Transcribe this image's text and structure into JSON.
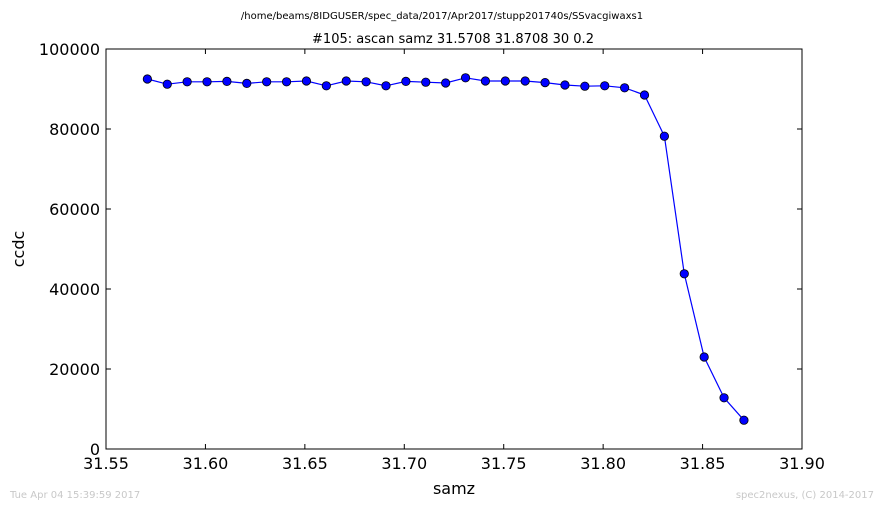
{
  "chart_data": {
    "type": "line",
    "suptitle": "/home/beams/8IDGUSER/spec_data/2017/Apr2017/stupp201740s/SSvacgiwaxs1",
    "title": "#105: ascan  samz 31.5708 31.8708  30 0.2",
    "xlabel": "samz",
    "ylabel": "ccdc",
    "xlim": [
      31.55,
      31.9
    ],
    "ylim": [
      0,
      100000
    ],
    "xticks": [
      "31.55",
      "31.60",
      "31.65",
      "31.70",
      "31.75",
      "31.80",
      "31.85",
      "31.90"
    ],
    "yticks": [
      "0",
      "20000",
      "40000",
      "60000",
      "80000",
      "100000"
    ],
    "grid": false,
    "line_color": "#0000ff",
    "marker_color": "#0000ff",
    "x": [
      31.5708,
      31.5808,
      31.5908,
      31.6008,
      31.6108,
      31.6208,
      31.6308,
      31.6408,
      31.6508,
      31.6608,
      31.6708,
      31.6808,
      31.6908,
      31.7008,
      31.7108,
      31.7208,
      31.7308,
      31.7408,
      31.7508,
      31.7608,
      31.7708,
      31.7808,
      31.7908,
      31.8008,
      31.8108,
      31.8208,
      31.8308,
      31.8408,
      31.8508,
      31.8608,
      31.8708
    ],
    "y": [
      92500,
      91200,
      91800,
      91800,
      91900,
      91400,
      91800,
      91800,
      92000,
      90800,
      92000,
      91800,
      90800,
      91900,
      91700,
      91500,
      92800,
      92000,
      92000,
      92000,
      91600,
      91000,
      90700,
      90800,
      90300,
      88500,
      78200,
      43800,
      23000,
      12800,
      7200
    ]
  },
  "footer": {
    "timestamp": "Tue Apr 04 15:39:59 2017",
    "credit": "spec2nexus, (C) 2014-2017"
  }
}
